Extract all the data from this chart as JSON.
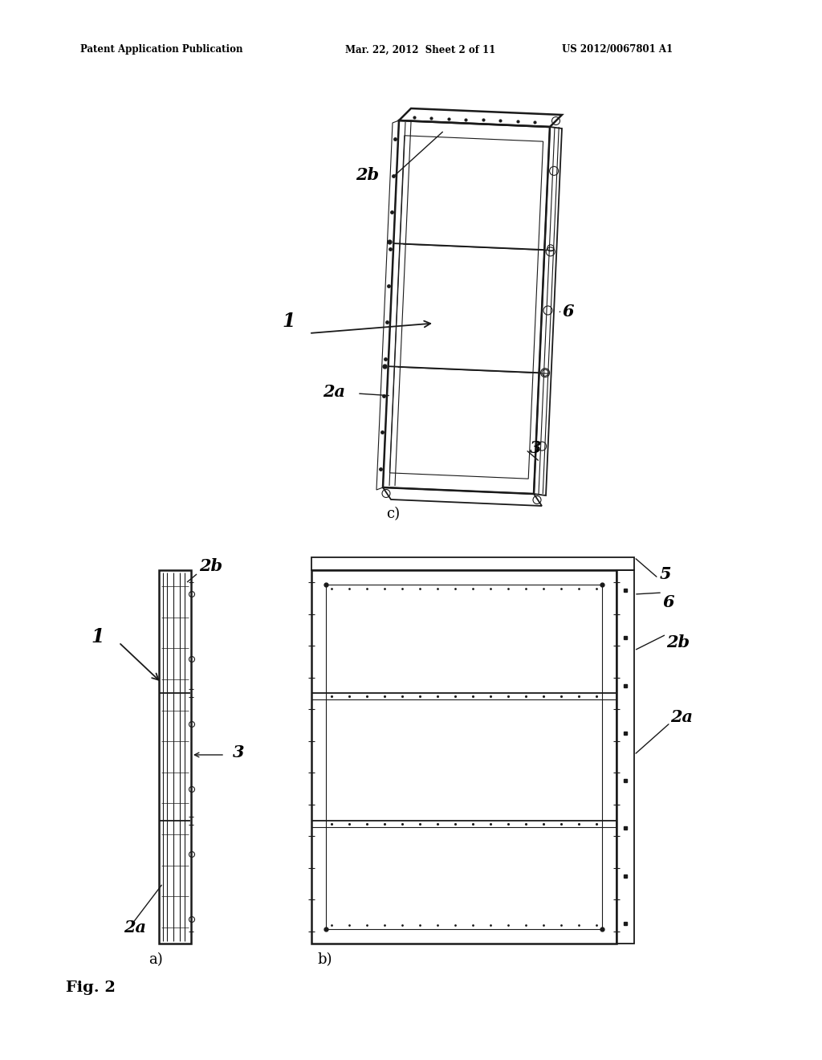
{
  "background_color": "#ffffff",
  "header_left": "Patent Application Publication",
  "header_mid": "Mar. 22, 2012  Sheet 2 of 11",
  "header_right": "US 2012/0067801 A1",
  "fig_label": "Fig. 2",
  "sub_a": "a)",
  "sub_b": "b)",
  "sub_c": "c)",
  "label_1": "1",
  "label_2a": "2a",
  "label_2b": "2b",
  "label_3": "3",
  "label_5": "5",
  "label_6": "6",
  "line_color": "#1a1a1a",
  "lw_thick": 1.8,
  "lw_med": 1.3,
  "lw_thin": 0.8
}
